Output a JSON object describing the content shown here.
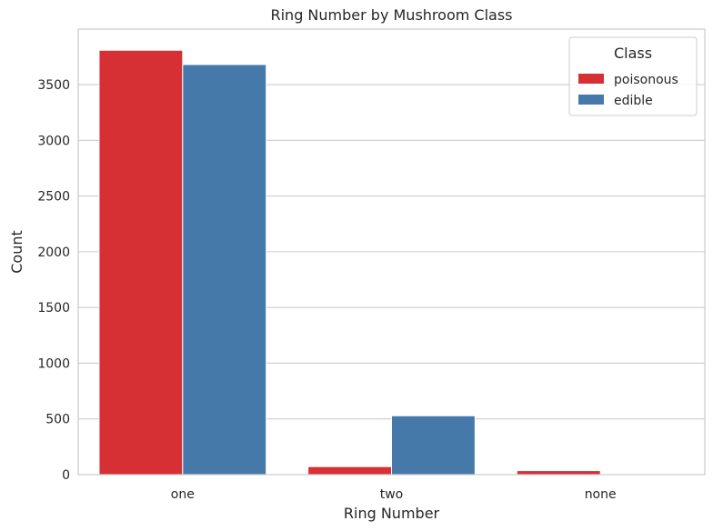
{
  "chart_data": {
    "type": "bar",
    "title": "Ring Number by Mushroom Class",
    "xlabel": "Ring Number",
    "ylabel": "Count",
    "categories": [
      "one",
      "two",
      "none"
    ],
    "series": [
      {
        "name": "poisonous",
        "color": "#d62f34",
        "values": [
          3808,
          72,
          36
        ]
      },
      {
        "name": "edible",
        "color": "#4479aa",
        "values": [
          3680,
          528,
          0
        ]
      }
    ],
    "ylim": [
      0,
      3998
    ],
    "yticks": [
      0,
      500,
      1000,
      1500,
      2000,
      2500,
      3000,
      3500
    ],
    "grid": "horizontal",
    "legend": {
      "title": "Class",
      "placement": "top-right"
    }
  }
}
